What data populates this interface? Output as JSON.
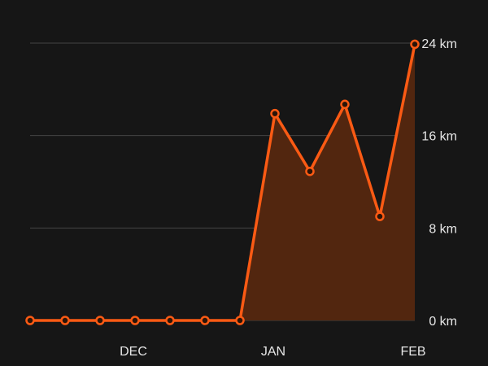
{
  "chart_data": {
    "type": "area",
    "title": "",
    "xlabel": "",
    "ylabel": "",
    "unit": "km",
    "ylim": [
      0,
      24
    ],
    "y_ticks": [
      0,
      8,
      16,
      24
    ],
    "y_tick_labels": [
      "0 km",
      "8 km",
      "16 km",
      "24 km"
    ],
    "x_tick_labels": [
      {
        "label": "DEC",
        "at_point": 3
      },
      {
        "label": "JAN",
        "at_point": 7
      },
      {
        "label": "FEB",
        "at_point": 11
      }
    ],
    "series": [
      {
        "values": [
          0,
          0,
          0,
          0,
          0,
          0,
          0,
          17.9,
          12.9,
          18.7,
          9.0,
          23.9
        ]
      }
    ],
    "grid": true,
    "y_axis_side": "right"
  },
  "colors": {
    "background": "#161616",
    "line": "#fa5a14",
    "marker_fill": "#2a1408",
    "area_fill": "#52260f",
    "grid": "#444444",
    "text": "#e6e6e6"
  }
}
